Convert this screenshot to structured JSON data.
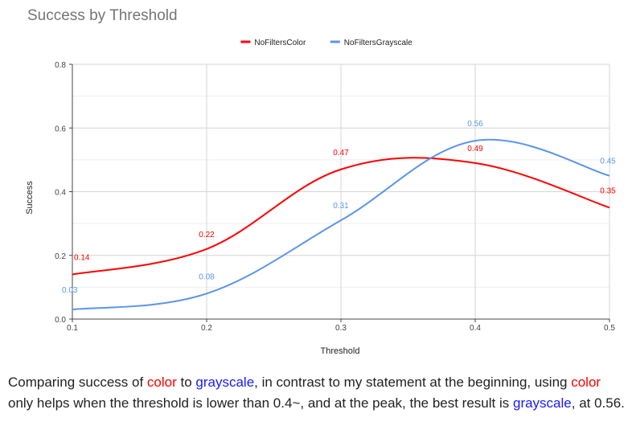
{
  "chart_data": {
    "type": "line",
    "title": "Success by Threshold",
    "xlabel": "Threshold",
    "ylabel": "Success",
    "x": [
      0.1,
      0.2,
      0.3,
      0.4,
      0.5
    ],
    "x_tick_labels": [
      "0.1",
      "0.2",
      "0.3",
      "0.4",
      "0.5"
    ],
    "y_tick_labels": [
      "0.0",
      "0.2",
      "0.4",
      "0.6",
      "0.8"
    ],
    "xlim": [
      0.1,
      0.5
    ],
    "ylim": [
      0,
      0.8
    ],
    "grid": true,
    "legend_position": "top",
    "series": [
      {
        "name": "NoFiltersColor",
        "color": "#ff0000",
        "values": [
          0.14,
          0.22,
          0.47,
          0.49,
          0.35
        ],
        "labels": [
          "0.14",
          "0.22",
          "0.47",
          "0.49",
          "0.35"
        ]
      },
      {
        "name": "NoFiltersGrayscale",
        "color": "#5a95e8",
        "values": [
          0.03,
          0.08,
          0.31,
          0.56,
          0.45
        ],
        "labels": [
          "0.03",
          "0.08",
          "0.31",
          "0.56",
          "0.45"
        ]
      }
    ]
  },
  "caption": {
    "p1": "Comparing success of ",
    "w1": "color",
    "p2": " to ",
    "w2": "grayscale",
    "p3": ", in contrast to my statement at the beginning, using ",
    "w3": "color",
    "p4": " only helps when the threshold is lower than 0.4~, and at the peak, the best result is ",
    "w4": "grayscale",
    "p5": ", at 0.56."
  }
}
